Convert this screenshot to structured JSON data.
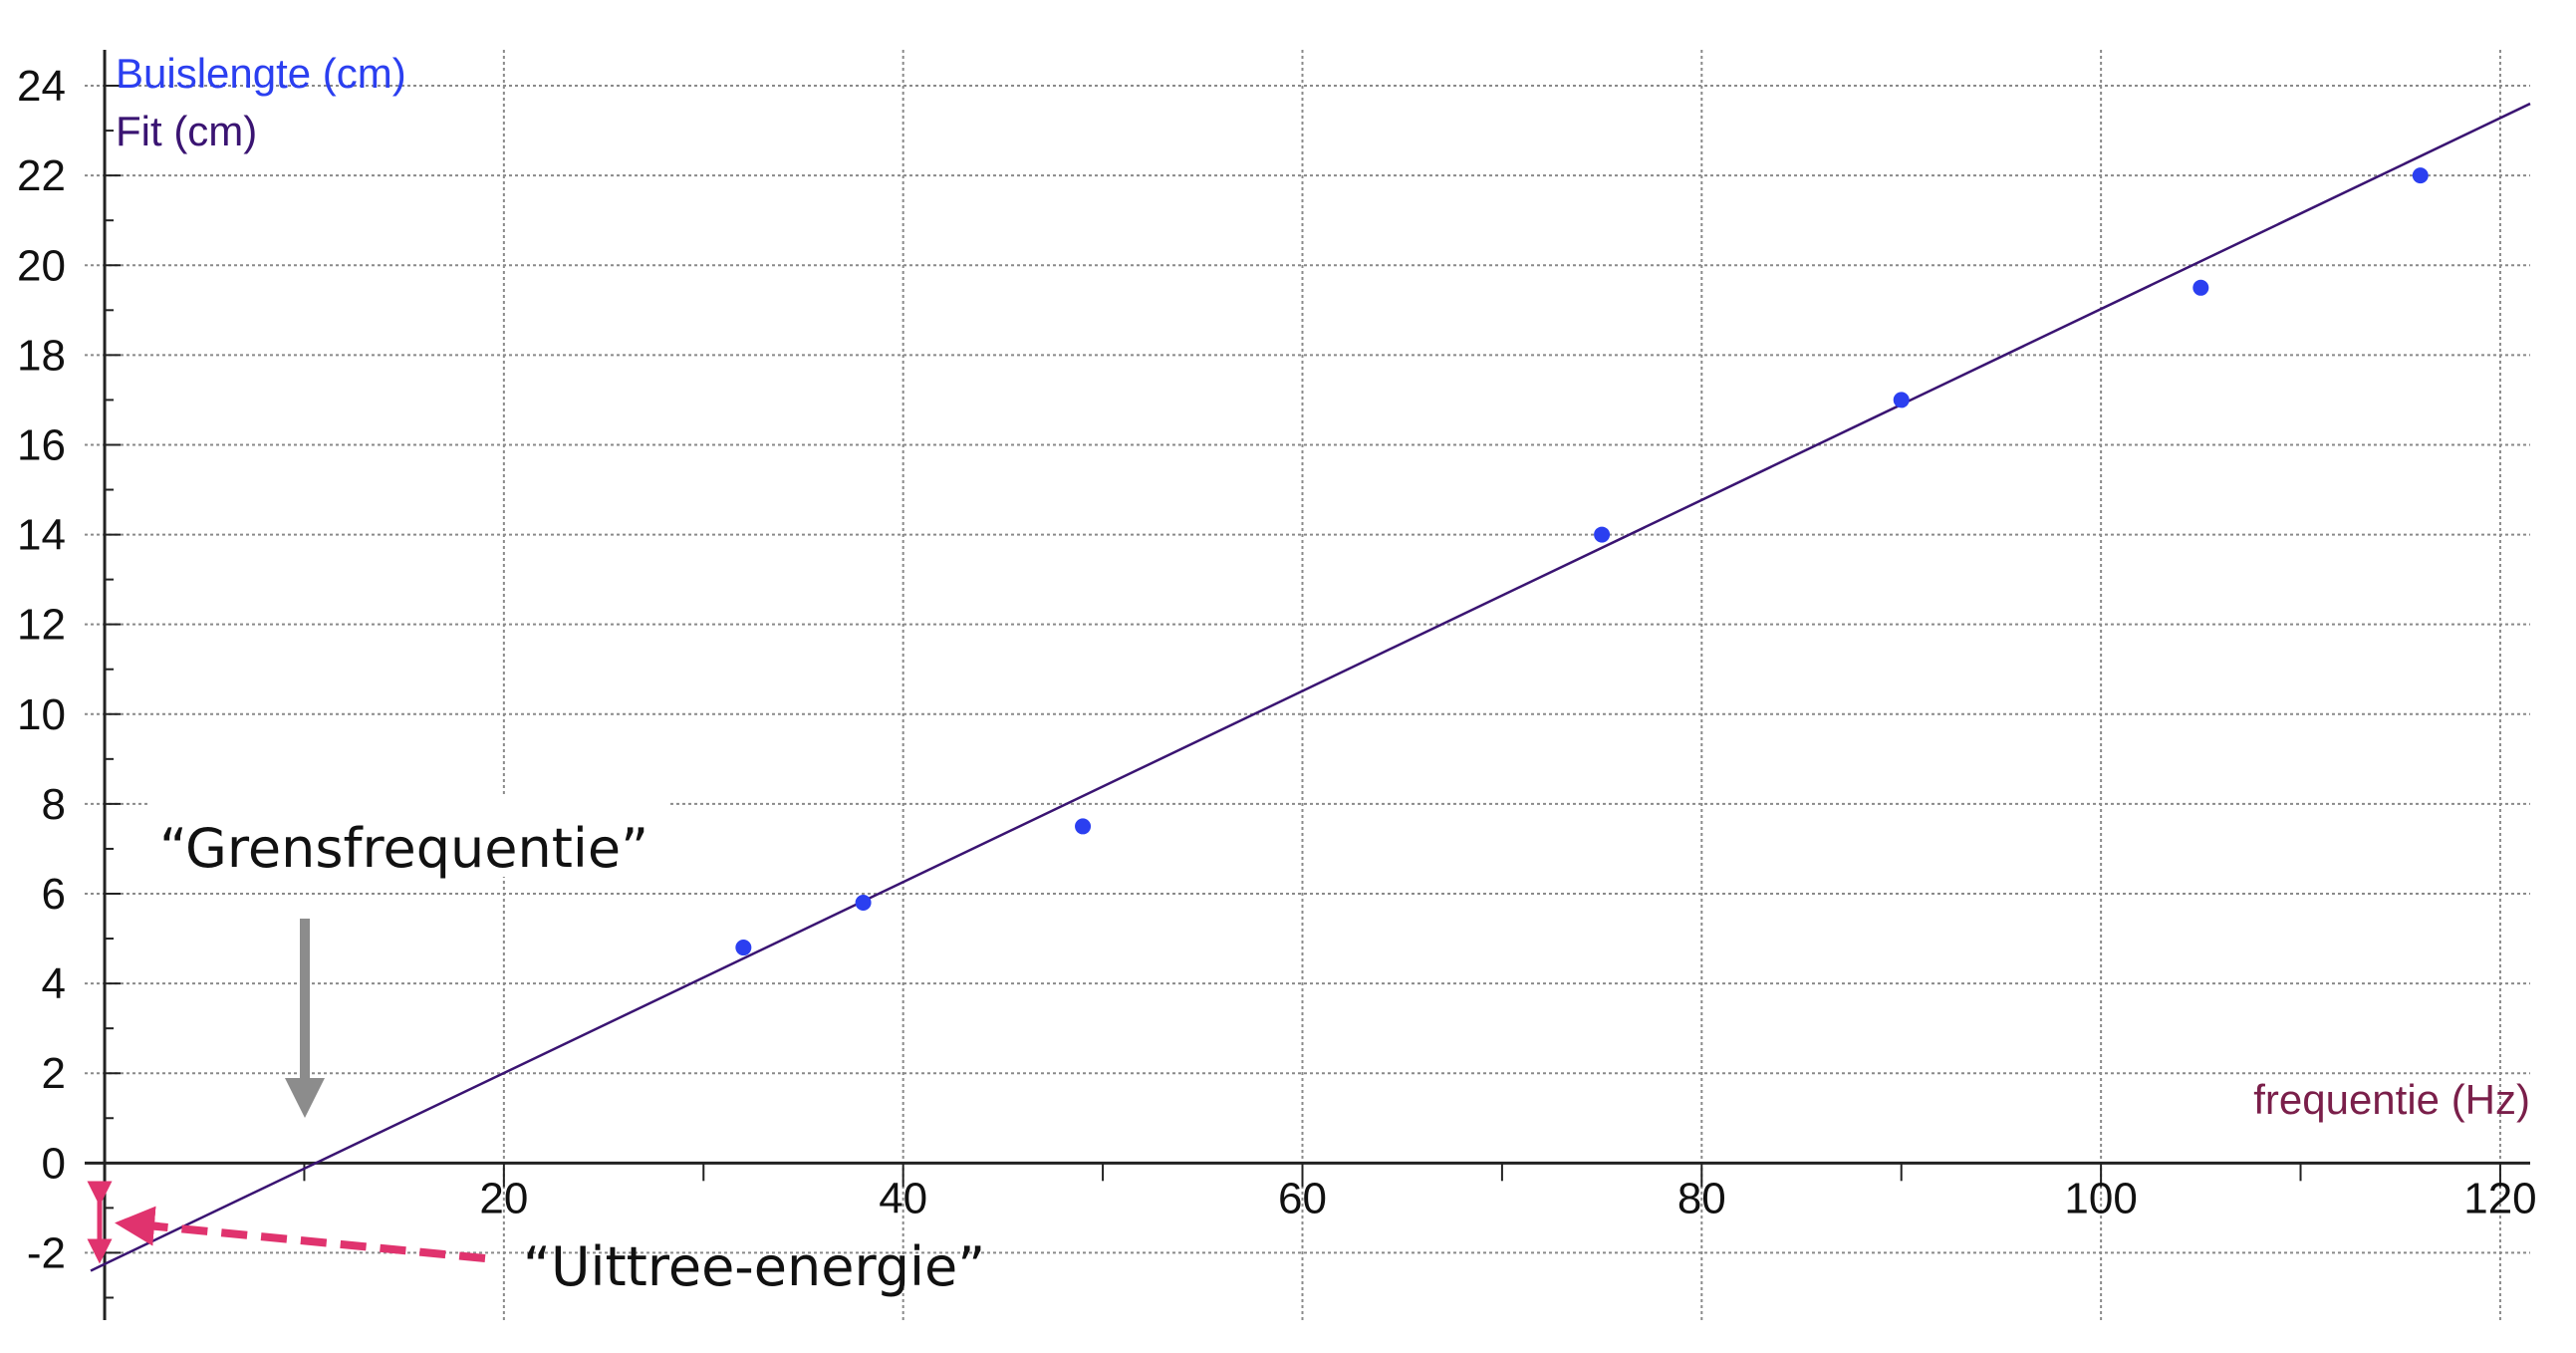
{
  "chart_data": {
    "type": "scatter",
    "x_axis": {
      "title": "frequentie (Hz)",
      "range": [
        -1,
        121.5
      ],
      "ticks": [
        20,
        40,
        60,
        80,
        100,
        120
      ],
      "title_color": "#7a1f4a"
    },
    "y_axis": {
      "range": [
        -3.5,
        24.8
      ],
      "ticks": [
        -2,
        0,
        2,
        4,
        6,
        8,
        10,
        12,
        14,
        16,
        18,
        20,
        22,
        24
      ]
    },
    "grid": true,
    "legend": {
      "placement": "top-left",
      "entries": [
        {
          "name": "Buislengte (cm)",
          "color": "#2b3ff0"
        },
        {
          "name": "Fit (cm)",
          "color": "#3a1472"
        }
      ]
    },
    "series": [
      {
        "name": "Buislengte (cm)",
        "kind": "points",
        "color": "#2b3ff0",
        "points": [
          {
            "x": 32,
            "y": 4.8
          },
          {
            "x": 38,
            "y": 5.8
          },
          {
            "x": 49,
            "y": 7.5
          },
          {
            "x": 75,
            "y": 14.0
          },
          {
            "x": 90,
            "y": 17.0
          },
          {
            "x": 105,
            "y": 19.5
          },
          {
            "x": 116,
            "y": 22.0
          }
        ]
      },
      {
        "name": "Fit (cm)",
        "kind": "line",
        "color": "#3a1472",
        "points": [
          {
            "x": -0.7,
            "y": -2.4
          },
          {
            "x": 121.5,
            "y": 23.6
          }
        ]
      }
    ],
    "annotations": [
      {
        "text": "“Grensfrequentie”",
        "target": {
          "x": 11,
          "y": 0
        },
        "arrow_color": "#8c8c8c"
      },
      {
        "text": "“Uittree-energie”",
        "target": {
          "x": 0,
          "y": -1.3
        },
        "arrow_color": "#e0336e"
      }
    ]
  }
}
